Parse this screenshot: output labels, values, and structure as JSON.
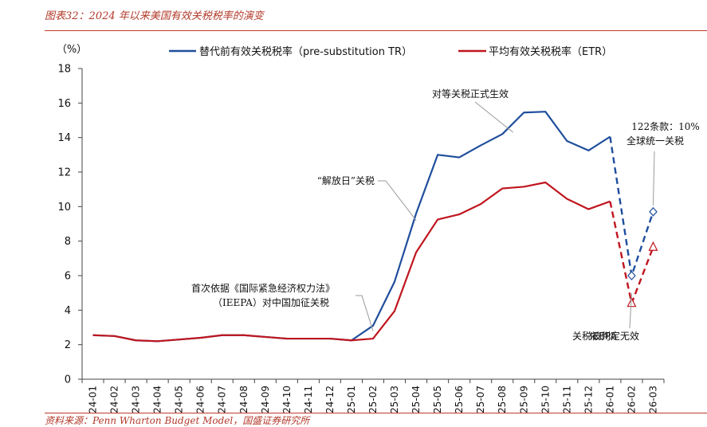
{
  "header": {
    "figure_title": "图表32：2024 年以来美国有效关税税率的演变",
    "source": "资料来源：Penn Wharton Budget Model，国盛证券研究所"
  },
  "colors": {
    "blue": "#1f4e9c",
    "red": "#c0161f",
    "accent": "#c0392b"
  },
  "chart_data": {
    "type": "line",
    "title": "",
    "ylabel": "（%）",
    "xlabel": "",
    "ylim": [
      0,
      18
    ],
    "yticks": [
      0,
      2,
      4,
      6,
      8,
      10,
      12,
      14,
      16,
      18
    ],
    "grid": false,
    "legend_position": "top",
    "categories": [
      "24-01",
      "24-02",
      "24-03",
      "24-04",
      "24-05",
      "24-06",
      "24-07",
      "24-08",
      "24-09",
      "24-10",
      "24-11",
      "24-12",
      "25-01",
      "25-02",
      "25-03",
      "25-04",
      "25-05",
      "25-06",
      "25-07",
      "25-08",
      "25-09",
      "25-10",
      "25-11",
      "25-12",
      "26-01",
      "26-02",
      "26-03"
    ],
    "series": [
      {
        "name": "替代前有效关税税率（pre-substitution TR）",
        "color": "#1f4e9c",
        "values": [
          2.55,
          2.5,
          2.25,
          2.2,
          2.3,
          2.4,
          2.55,
          2.55,
          2.45,
          2.35,
          2.35,
          2.35,
          2.25,
          3.1,
          5.65,
          9.6,
          13.0,
          12.85,
          13.55,
          14.2,
          15.45,
          15.5,
          13.8,
          13.25,
          14.05,
          6.0,
          9.7
        ],
        "dashed_from_index": 24,
        "marker": "diamond",
        "marker_indices": [
          25,
          26
        ]
      },
      {
        "name": "平均有效关税税率（ETR）",
        "color": "#c0161f",
        "values": [
          2.55,
          2.5,
          2.25,
          2.2,
          2.3,
          2.4,
          2.55,
          2.55,
          2.45,
          2.35,
          2.35,
          2.35,
          2.25,
          2.35,
          3.95,
          7.35,
          9.25,
          9.55,
          10.15,
          11.05,
          11.15,
          11.4,
          10.45,
          9.85,
          10.3,
          4.4,
          7.65
        ],
        "dashed_from_index": 24,
        "marker": "triangle",
        "marker_indices": [
          25,
          26
        ]
      }
    ],
    "annotations": [
      {
        "text": "对等关税正式生效",
        "target_index": 19.5,
        "target_value": 14.3
      },
      {
        "text": "“解放日”关税",
        "target_index": 15,
        "target_value": 9.2
      },
      {
        "text": "首次依据《国际紧急经济权力法》",
        "line2": "（IEEPA）对中国加征关税",
        "target_index": 13,
        "target_value": 2.8
      },
      {
        "text": "122条款：10%",
        "line2": "全球统一关税",
        "target_index": 26,
        "target_value": 9.8
      },
      {
        "text": "关税被判定无效",
        "overlay": "IEEPA",
        "target_index": 25,
        "target_value": 5.0
      }
    ]
  }
}
